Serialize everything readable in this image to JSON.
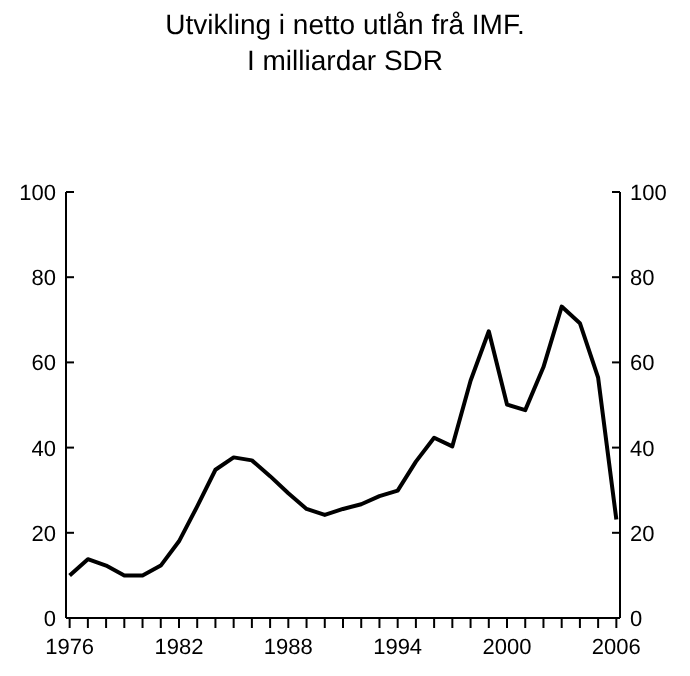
{
  "chart_data": {
    "type": "line",
    "title": "Utvikling i netto utlån frå IMF.",
    "subtitle": "I milliardar SDR",
    "x": [
      1976,
      1977,
      1978,
      1979,
      1980,
      1981,
      1982,
      1983,
      1984,
      1985,
      1986,
      1987,
      1988,
      1989,
      1990,
      1991,
      1992,
      1993,
      1994,
      1995,
      1996,
      1997,
      1998,
      1999,
      2000,
      2001,
      2002,
      2003,
      2004,
      2005,
      2006
    ],
    "series": [
      {
        "color": "#000000",
        "values": [
          10,
          13.8,
          12.3,
          10,
          10,
          12.3,
          18,
          26.2,
          34.8,
          37.7,
          37,
          33.3,
          29.3,
          25.6,
          24.2,
          25.6,
          26.7,
          28.6,
          29.9,
          36.7,
          42.3,
          40.3,
          55.7,
          67.3,
          50.1,
          48.8,
          58.9,
          73.1,
          69.2,
          56.4,
          23.1
        ]
      }
    ],
    "xlim": [
      1975.8,
      2006.2
    ],
    "xticks": [
      1976,
      {
        "value": 1977,
        "label": null
      },
      {
        "value": 1978,
        "label": null
      },
      {
        "value": 1979,
        "label": null
      },
      {
        "value": 1980,
        "label": null
      },
      {
        "value": 1981,
        "label": null
      },
      1982,
      {
        "value": 1983,
        "label": null
      },
      {
        "value": 1984,
        "label": null
      },
      {
        "value": 1985,
        "label": null
      },
      {
        "value": 1986,
        "label": null
      },
      {
        "value": 1987,
        "label": null
      },
      1988,
      {
        "value": 1989,
        "label": null
      },
      {
        "value": 1990,
        "label": null
      },
      {
        "value": 1991,
        "label": null
      },
      {
        "value": 1992,
        "label": null
      },
      {
        "value": 1993,
        "label": null
      },
      1994,
      {
        "value": 1995,
        "label": null
      },
      {
        "value": 1996,
        "label": null
      },
      {
        "value": 1997,
        "label": null
      },
      {
        "value": 1998,
        "label": null
      },
      {
        "value": 1999,
        "label": null
      },
      2000,
      {
        "value": 2001,
        "label": null
      },
      {
        "value": 2002,
        "label": null
      },
      {
        "value": 2003,
        "label": null
      },
      {
        "value": 2004,
        "label": null
      },
      {
        "value": 2005,
        "label": null
      },
      2006
    ],
    "ylim": [
      0,
      100
    ],
    "yticks": [
      0,
      20,
      40,
      60,
      80,
      100
    ],
    "y2lim": [
      0,
      100
    ],
    "y2ticks": [
      0,
      20,
      40,
      60,
      80,
      100
    ],
    "grid": false,
    "marker": "none",
    "line_style": "solid"
  }
}
